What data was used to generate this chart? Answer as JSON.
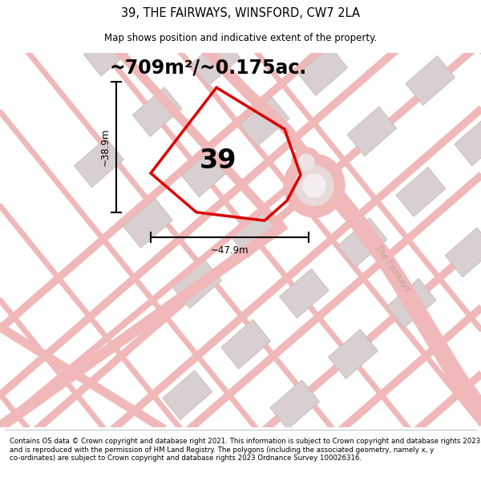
{
  "title": "39, THE FAIRWAYS, WINSFORD, CW7 2LA",
  "subtitle": "Map shows position and indicative extent of the property.",
  "area_text": "~709m²/~0.175ac.",
  "width_label": "~47.9m",
  "height_label": "~38.9m",
  "plot_number": "39",
  "street_label": "The Fairways",
  "footer_text": "Contains OS data © Crown copyright and database right 2021. This information is subject to Crown copyright and database rights 2023 and is reproduced with the permission of HM Land Registry. The polygons (including the associated geometry, namely x, y co-ordinates) are subject to Crown copyright and database rights 2023 Ordnance Survey 100026316.",
  "bg_color": "#ffffff",
  "plot_color": "#dd0000",
  "road_color": "#f0b8b8",
  "building_color": "#d8d0d0",
  "building_edge": "#c8b8b8"
}
